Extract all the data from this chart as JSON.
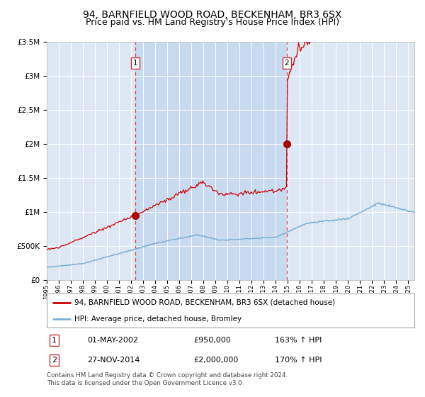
{
  "title": "94, BARNFIELD WOOD ROAD, BECKENHAM, BR3 6SX",
  "subtitle": "Price paid vs. HM Land Registry's House Price Index (HPI)",
  "title_fontsize": 10,
  "subtitle_fontsize": 9,
  "background_color": "#ffffff",
  "plot_bg_color": "#dde8f4",
  "shade_color": "#c8daf0",
  "grid_color": "#c8d8e8",
  "hpi_line_color": "#7ab0d4",
  "price_line_color": "#cc0000",
  "marker_color": "#aa0000",
  "vline_color": "#dd4444",
  "ylim": [
    0,
    3500000
  ],
  "yticks": [
    0,
    500000,
    1000000,
    1500000,
    2000000,
    2500000,
    3000000,
    3500000
  ],
  "ytick_labels": [
    "£0",
    "£500K",
    "£1M",
    "£1.5M",
    "£2M",
    "£2.5M",
    "£3M",
    "£3.5M"
  ],
  "sale1_date": 2002.35,
  "sale1_price": 950000,
  "sale1_label": "1",
  "sale2_date": 2014.9,
  "sale2_price": 2000000,
  "sale2_label": "2",
  "legend_line1": "94, BARNFIELD WOOD ROAD, BECKENHAM, BR3 6SX (detached house)",
  "legend_line2": "HPI: Average price, detached house, Bromley",
  "footnote": "Contains HM Land Registry data © Crown copyright and database right 2024.\nThis data is licensed under the Open Government Licence v3.0.",
  "xstart": 1995.0,
  "xend": 2025.5
}
